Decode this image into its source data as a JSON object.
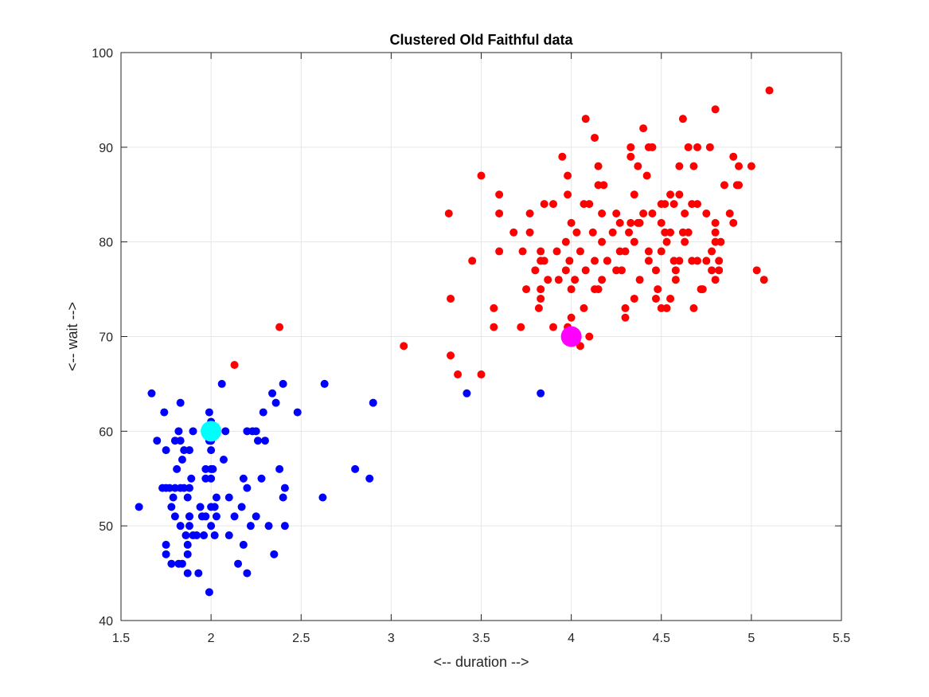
{
  "chart_data": {
    "type": "scatter",
    "title": "Clustered Old Faithful data",
    "xlabel": "<-- duration -->",
    "ylabel": "<-- wait -->",
    "xlim": [
      1.5,
      5.5
    ],
    "ylim": [
      40,
      100
    ],
    "xticks": [
      "1.5",
      "2",
      "2.5",
      "3",
      "3.5",
      "4",
      "4.5",
      "5",
      "5.5"
    ],
    "yticks": [
      "40",
      "50",
      "60",
      "70",
      "80",
      "90",
      "100"
    ],
    "grid": true,
    "series": [
      {
        "color": "#0000ff",
        "kind": "points",
        "points": [
          [
            1.6,
            52
          ],
          [
            1.67,
            64
          ],
          [
            1.7,
            59
          ],
          [
            1.73,
            54
          ],
          [
            1.74,
            62
          ],
          [
            1.75,
            54
          ],
          [
            1.75,
            48
          ],
          [
            1.75,
            47
          ],
          [
            1.75,
            58
          ],
          [
            1.77,
            54
          ],
          [
            1.78,
            52
          ],
          [
            1.78,
            46
          ],
          [
            1.79,
            53
          ],
          [
            1.8,
            51
          ],
          [
            1.8,
            54
          ],
          [
            1.8,
            59
          ],
          [
            1.81,
            56
          ],
          [
            1.82,
            60
          ],
          [
            1.82,
            46
          ],
          [
            1.83,
            59
          ],
          [
            1.83,
            54
          ],
          [
            1.83,
            63
          ],
          [
            1.83,
            50
          ],
          [
            1.84,
            57
          ],
          [
            1.84,
            46
          ],
          [
            1.85,
            54
          ],
          [
            1.85,
            58
          ],
          [
            1.86,
            49
          ],
          [
            1.87,
            53
          ],
          [
            1.87,
            48
          ],
          [
            1.87,
            47
          ],
          [
            1.87,
            45
          ],
          [
            1.88,
            51
          ],
          [
            1.88,
            51
          ],
          [
            1.88,
            54
          ],
          [
            1.88,
            58
          ],
          [
            1.88,
            50
          ],
          [
            1.89,
            55
          ],
          [
            1.9,
            60
          ],
          [
            1.9,
            49
          ],
          [
            1.92,
            49
          ],
          [
            1.93,
            45
          ],
          [
            1.94,
            52
          ],
          [
            1.95,
            51
          ],
          [
            1.96,
            49
          ],
          [
            1.97,
            51
          ],
          [
            1.97,
            56
          ],
          [
            1.97,
            55
          ],
          [
            1.99,
            62
          ],
          [
            1.99,
            59
          ],
          [
            1.99,
            43
          ],
          [
            2.0,
            56
          ],
          [
            2.0,
            59
          ],
          [
            2.0,
            55
          ],
          [
            2.0,
            59
          ],
          [
            2.0,
            61
          ],
          [
            2.0,
            58
          ],
          [
            2.0,
            52
          ],
          [
            2.0,
            59
          ],
          [
            2.0,
            60
          ],
          [
            2.0,
            50
          ],
          [
            2.01,
            56
          ],
          [
            2.02,
            52
          ],
          [
            2.02,
            49
          ],
          [
            2.03,
            53
          ],
          [
            2.03,
            51
          ],
          [
            2.06,
            65
          ],
          [
            2.07,
            57
          ],
          [
            2.08,
            60
          ],
          [
            2.1,
            53
          ],
          [
            2.1,
            49
          ],
          [
            2.13,
            51
          ],
          [
            2.15,
            46
          ],
          [
            2.17,
            52
          ],
          [
            2.18,
            48
          ],
          [
            2.18,
            55
          ],
          [
            2.2,
            60
          ],
          [
            2.2,
            54
          ],
          [
            2.2,
            45
          ],
          [
            2.22,
            50
          ],
          [
            2.23,
            60
          ],
          [
            2.25,
            60
          ],
          [
            2.26,
            59
          ],
          [
            2.25,
            51
          ],
          [
            2.28,
            55
          ],
          [
            2.29,
            62
          ],
          [
            2.3,
            59
          ],
          [
            2.32,
            50
          ],
          [
            2.34,
            64
          ],
          [
            2.35,
            47
          ],
          [
            2.36,
            63
          ],
          [
            2.38,
            56
          ],
          [
            2.4,
            53
          ],
          [
            2.4,
            65
          ],
          [
            2.41,
            54
          ],
          [
            2.41,
            50
          ],
          [
            2.48,
            62
          ],
          [
            2.62,
            53
          ],
          [
            2.63,
            65
          ],
          [
            2.8,
            56
          ],
          [
            2.88,
            55
          ],
          [
            2.9,
            63
          ],
          [
            3.42,
            64
          ],
          [
            3.83,
            64
          ]
        ]
      },
      {
        "color": "#ff0000",
        "kind": "points",
        "points": [
          [
            2.13,
            67
          ],
          [
            2.38,
            71
          ],
          [
            3.07,
            69
          ],
          [
            3.32,
            83
          ],
          [
            3.33,
            74
          ],
          [
            3.33,
            68
          ],
          [
            3.37,
            66
          ],
          [
            3.45,
            78
          ],
          [
            3.5,
            87
          ],
          [
            3.5,
            66
          ],
          [
            3.57,
            73
          ],
          [
            3.57,
            71
          ],
          [
            3.6,
            85
          ],
          [
            3.6,
            83
          ],
          [
            3.6,
            79
          ],
          [
            3.68,
            81
          ],
          [
            3.72,
            71
          ],
          [
            3.73,
            79
          ],
          [
            3.75,
            75
          ],
          [
            3.77,
            83
          ],
          [
            3.77,
            81
          ],
          [
            3.8,
            77
          ],
          [
            3.82,
            73
          ],
          [
            3.83,
            79
          ],
          [
            3.83,
            78
          ],
          [
            3.83,
            75
          ],
          [
            3.83,
            74
          ],
          [
            3.85,
            84
          ],
          [
            3.85,
            78
          ],
          [
            3.87,
            76
          ],
          [
            3.9,
            71
          ],
          [
            3.9,
            84
          ],
          [
            3.92,
            79
          ],
          [
            3.93,
            76
          ],
          [
            3.95,
            89
          ],
          [
            3.97,
            77
          ],
          [
            3.97,
            80
          ],
          [
            3.98,
            87
          ],
          [
            3.98,
            85
          ],
          [
            3.98,
            71
          ],
          [
            3.99,
            78
          ],
          [
            4.0,
            72
          ],
          [
            4.0,
            82
          ],
          [
            4.0,
            75
          ],
          [
            4.02,
            76
          ],
          [
            4.03,
            81
          ],
          [
            4.05,
            79
          ],
          [
            4.05,
            69
          ],
          [
            4.07,
            84
          ],
          [
            4.07,
            73
          ],
          [
            4.08,
            93
          ],
          [
            4.08,
            77
          ],
          [
            4.1,
            70
          ],
          [
            4.1,
            84
          ],
          [
            4.12,
            81
          ],
          [
            4.13,
            78
          ],
          [
            4.13,
            91
          ],
          [
            4.13,
            75
          ],
          [
            4.15,
            88
          ],
          [
            4.15,
            86
          ],
          [
            4.15,
            75
          ],
          [
            4.17,
            80
          ],
          [
            4.17,
            83
          ],
          [
            4.17,
            76
          ],
          [
            4.18,
            86
          ],
          [
            4.2,
            78
          ],
          [
            4.2,
            78
          ],
          [
            4.23,
            81
          ],
          [
            4.25,
            77
          ],
          [
            4.25,
            83
          ],
          [
            4.27,
            79
          ],
          [
            4.27,
            82
          ],
          [
            4.28,
            77
          ],
          [
            4.3,
            73
          ],
          [
            4.3,
            72
          ],
          [
            4.3,
            79
          ],
          [
            4.32,
            81
          ],
          [
            4.33,
            90
          ],
          [
            4.33,
            89
          ],
          [
            4.33,
            82
          ],
          [
            4.35,
            85
          ],
          [
            4.35,
            80
          ],
          [
            4.35,
            74
          ],
          [
            4.37,
            88
          ],
          [
            4.37,
            82
          ],
          [
            4.38,
            76
          ],
          [
            4.38,
            82
          ],
          [
            4.4,
            92
          ],
          [
            4.4,
            83
          ],
          [
            4.42,
            87
          ],
          [
            4.43,
            90
          ],
          [
            4.43,
            78
          ],
          [
            4.43,
            79
          ],
          [
            4.45,
            90
          ],
          [
            4.45,
            83
          ],
          [
            4.47,
            77
          ],
          [
            4.47,
            74
          ],
          [
            4.48,
            75
          ],
          [
            4.5,
            73
          ],
          [
            4.5,
            84
          ],
          [
            4.5,
            79
          ],
          [
            4.5,
            82
          ],
          [
            4.52,
            81
          ],
          [
            4.52,
            84
          ],
          [
            4.53,
            80
          ],
          [
            4.53,
            73
          ],
          [
            4.55,
            85
          ],
          [
            4.55,
            74
          ],
          [
            4.55,
            81
          ],
          [
            4.57,
            78
          ],
          [
            4.57,
            84
          ],
          [
            4.58,
            77
          ],
          [
            4.58,
            76
          ],
          [
            4.6,
            85
          ],
          [
            4.6,
            78
          ],
          [
            4.6,
            88
          ],
          [
            4.62,
            93
          ],
          [
            4.62,
            81
          ],
          [
            4.63,
            80
          ],
          [
            4.63,
            83
          ],
          [
            4.65,
            90
          ],
          [
            4.65,
            81
          ],
          [
            4.67,
            78
          ],
          [
            4.67,
            84
          ],
          [
            4.68,
            88
          ],
          [
            4.68,
            73
          ],
          [
            4.7,
            90
          ],
          [
            4.7,
            78
          ],
          [
            4.7,
            84
          ],
          [
            4.72,
            75
          ],
          [
            4.73,
            75
          ],
          [
            4.75,
            83
          ],
          [
            4.75,
            78
          ],
          [
            4.77,
            90
          ],
          [
            4.78,
            77
          ],
          [
            4.78,
            79
          ],
          [
            4.8,
            94
          ],
          [
            4.8,
            82
          ],
          [
            4.8,
            76
          ],
          [
            4.8,
            81
          ],
          [
            4.8,
            80
          ],
          [
            4.82,
            78
          ],
          [
            4.82,
            77
          ],
          [
            4.83,
            80
          ],
          [
            4.85,
            86
          ],
          [
            4.88,
            83
          ],
          [
            4.9,
            82
          ],
          [
            4.9,
            89
          ],
          [
            4.92,
            86
          ],
          [
            4.93,
            88
          ],
          [
            4.93,
            86
          ],
          [
            5.0,
            88
          ],
          [
            5.03,
            77
          ],
          [
            5.07,
            76
          ],
          [
            5.1,
            96
          ]
        ]
      },
      {
        "color": "#00ffff",
        "kind": "centroid",
        "points": [
          [
            2.0,
            60
          ]
        ]
      },
      {
        "color": "#ff00ff",
        "kind": "centroid",
        "points": [
          [
            4.0,
            70
          ]
        ]
      }
    ]
  }
}
